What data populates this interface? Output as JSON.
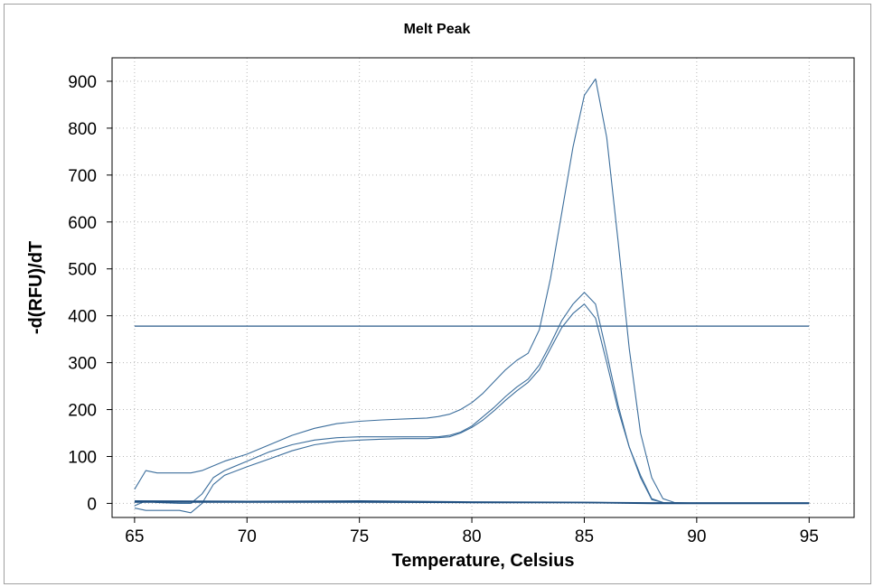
{
  "chart_data": {
    "type": "line",
    "title": "Melt Peak",
    "xlabel": "Temperature, Celsius",
    "ylabel": "-d(RFU)/dT",
    "xlim": [
      64,
      97
    ],
    "ylim": [
      -30,
      950
    ],
    "xticks": [
      65,
      70,
      75,
      80,
      85,
      90,
      95
    ],
    "yticks": [
      0,
      100,
      200,
      300,
      400,
      500,
      600,
      700,
      800,
      900
    ],
    "grid": true,
    "legend": "none",
    "series": [
      {
        "color": "#3c6e9c",
        "x": [
          65,
          65.5,
          66,
          67,
          67.5,
          68,
          68.5,
          69,
          70,
          71,
          72,
          73,
          74,
          75,
          76,
          77,
          78,
          78.5,
          79,
          79.5,
          80,
          80.5,
          81,
          81.5,
          82,
          82.5,
          83,
          83.5,
          84,
          84.5,
          85,
          85.5,
          86,
          86.5,
          87,
          87.5,
          88,
          88.5,
          89,
          90,
          91,
          92,
          93,
          94,
          95
        ],
        "y": [
          30,
          70,
          65,
          65,
          65,
          70,
          80,
          90,
          105,
          125,
          145,
          160,
          170,
          175,
          178,
          180,
          182,
          185,
          190,
          200,
          215,
          235,
          260,
          285,
          305,
          320,
          370,
          480,
          620,
          760,
          870,
          905,
          780,
          560,
          330,
          150,
          55,
          10,
          2,
          0,
          0,
          0,
          0,
          0,
          0
        ]
      },
      {
        "color": "#3c6e9c",
        "x": [
          65,
          65.5,
          66,
          67,
          67.5,
          68,
          68.5,
          69,
          70,
          71,
          72,
          73,
          74,
          75,
          76,
          77,
          78,
          78.5,
          79,
          79.5,
          80,
          80.5,
          81,
          81.5,
          82,
          82.5,
          83,
          83.5,
          84,
          84.5,
          85,
          85.5,
          86,
          86.5,
          87,
          87.5,
          88,
          88.5,
          89,
          90,
          91,
          92,
          93,
          94,
          95
        ],
        "y": [
          -5,
          5,
          2,
          0,
          0,
          20,
          55,
          70,
          90,
          110,
          125,
          135,
          140,
          142,
          142,
          142,
          142,
          142,
          145,
          152,
          165,
          185,
          205,
          228,
          248,
          265,
          295,
          340,
          390,
          425,
          450,
          425,
          320,
          210,
          120,
          60,
          10,
          2,
          0,
          0,
          0,
          0,
          0,
          0,
          0
        ]
      },
      {
        "color": "#3c6e9c",
        "x": [
          65,
          65.5,
          66,
          67,
          67.5,
          68,
          68.5,
          69,
          70,
          71,
          72,
          73,
          74,
          75,
          76,
          77,
          78,
          78.5,
          79,
          79.5,
          80,
          80.5,
          81,
          81.5,
          82,
          82.5,
          83,
          83.5,
          84,
          84.5,
          85,
          85.5,
          86,
          86.5,
          87,
          87.5,
          88,
          88.5,
          89,
          90,
          91,
          92,
          93,
          94,
          95
        ],
        "y": [
          -10,
          -15,
          -15,
          -15,
          -20,
          0,
          40,
          60,
          78,
          95,
          112,
          125,
          132,
          135,
          137,
          138,
          138,
          140,
          142,
          150,
          162,
          178,
          198,
          220,
          240,
          258,
          285,
          330,
          375,
          405,
          425,
          395,
          300,
          200,
          120,
          55,
          8,
          2,
          0,
          0,
          0,
          0,
          0,
          0,
          0
        ]
      },
      {
        "color": "#1f4f80",
        "x": [
          65,
          67,
          70,
          75,
          80,
          85,
          88,
          90,
          95
        ],
        "y": [
          3,
          3,
          3,
          3,
          2,
          2,
          1,
          1,
          1
        ]
      },
      {
        "color": "#1f4f80",
        "x": [
          65,
          70,
          75,
          80,
          85,
          88,
          90,
          95
        ],
        "y": [
          5,
          4,
          5,
          3,
          2,
          0,
          0,
          0
        ]
      }
    ],
    "threshold": {
      "y": 378,
      "x_start": 65,
      "x_end": 95,
      "color": "#2a5a8a"
    }
  }
}
